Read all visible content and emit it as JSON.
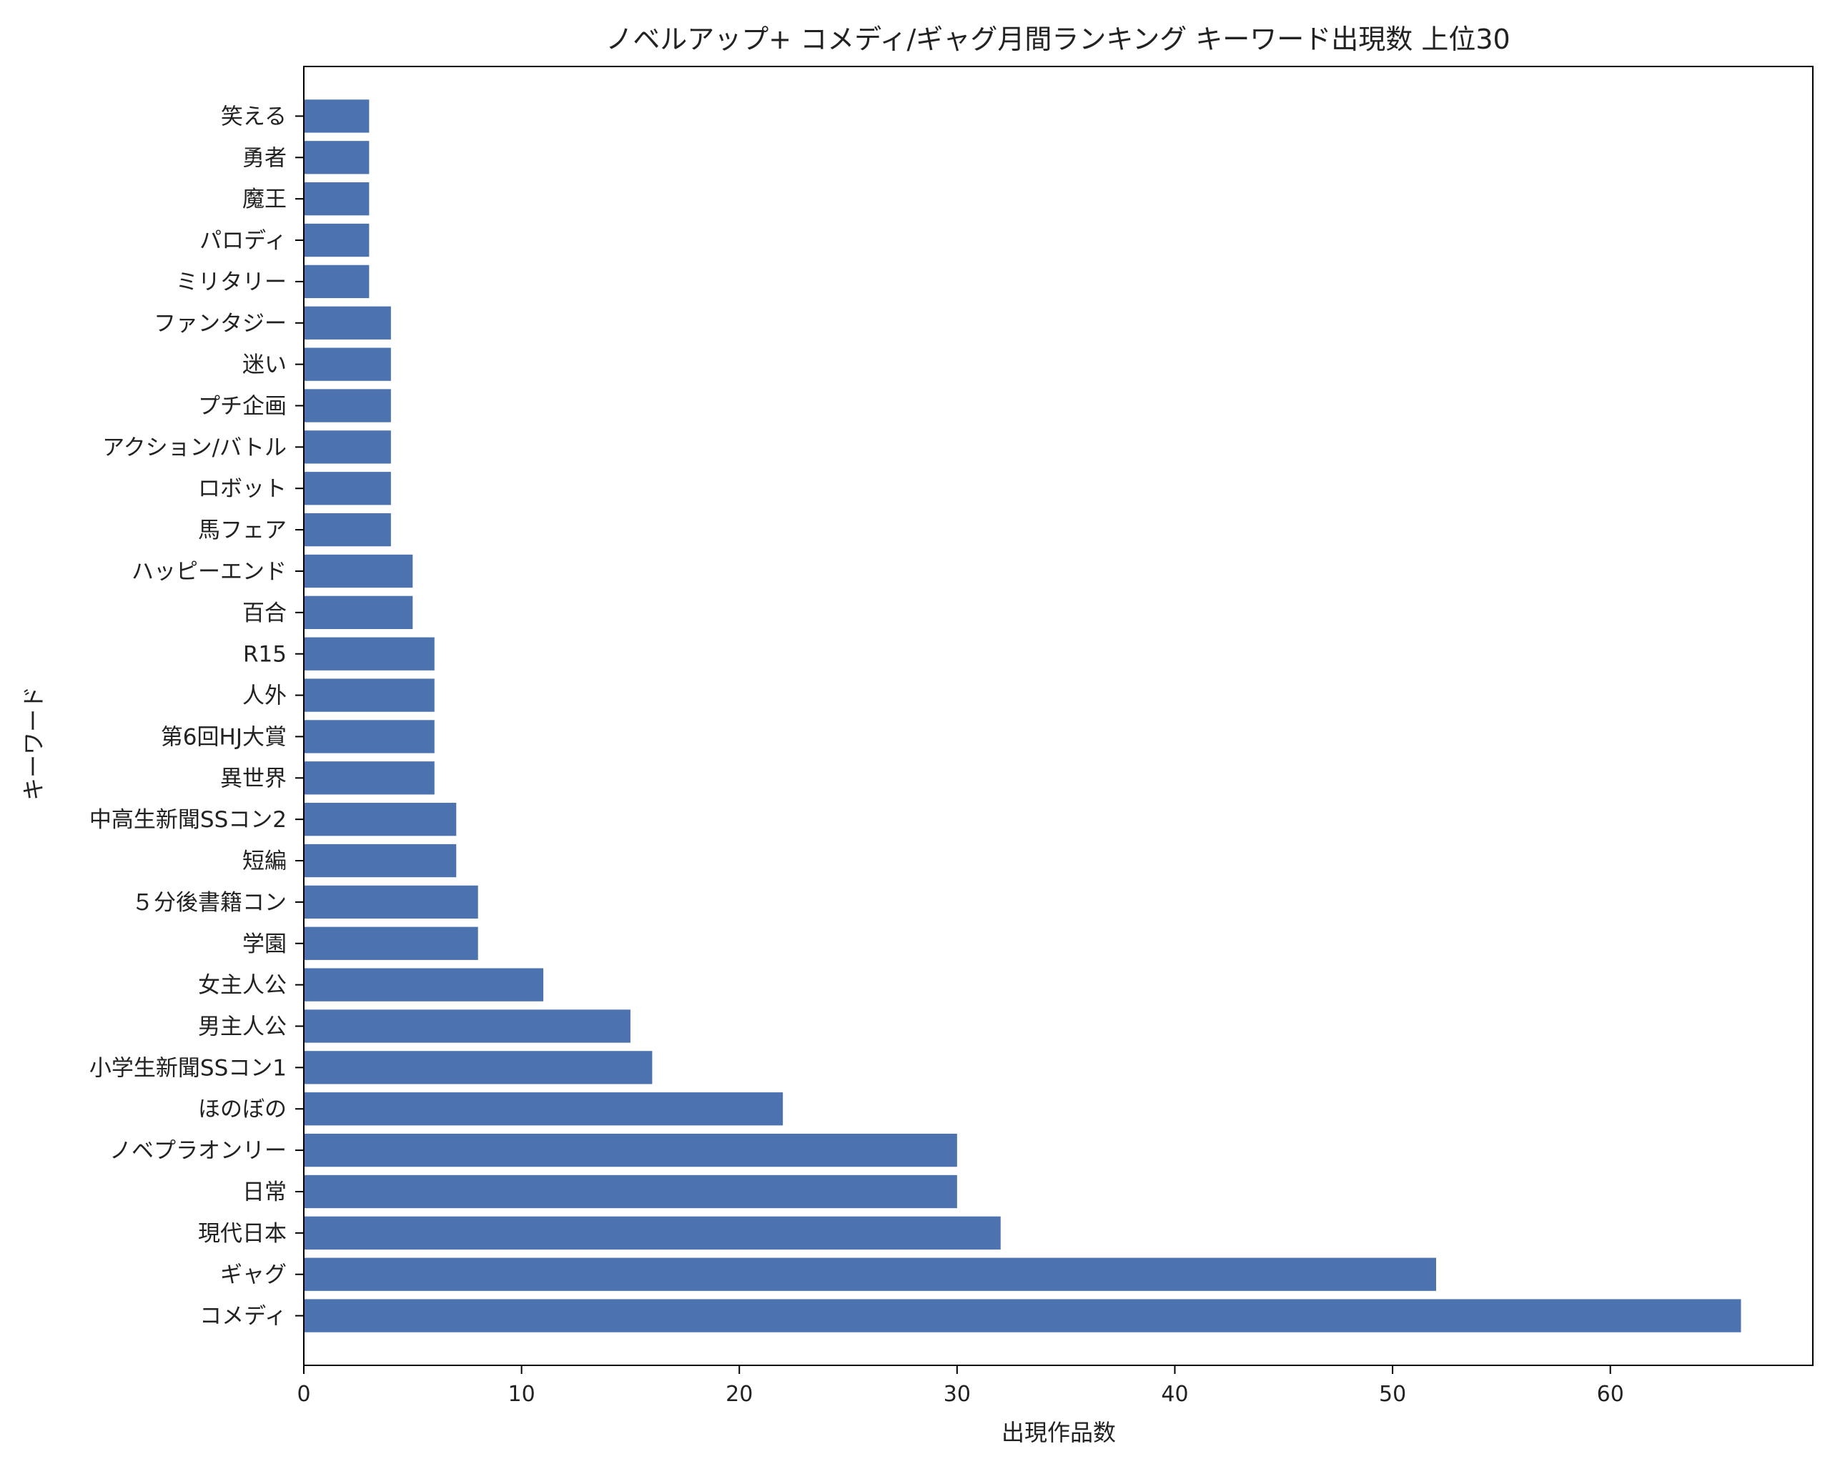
{
  "chart_data": {
    "type": "bar",
    "orientation": "horizontal",
    "title": "ノベルアップ+ コメディ/ギャグ月間ランキング キーワード出現数 上位30",
    "xlabel": "出現作品数",
    "ylabel": "キーワード",
    "xlim": [
      0,
      69.3
    ],
    "x_ticks": [
      0,
      10,
      20,
      30,
      40,
      50,
      60
    ],
    "grid": false,
    "bar_color": "#4c72b0",
    "categories": [
      "コメディ",
      "ギャグ",
      "現代日本",
      "日常",
      "ノベプラオンリー",
      "ほのぼの",
      "小学生新聞SSコン1",
      "男主人公",
      "女主人公",
      "学園",
      "５分後書籍コン",
      "短編",
      "中高生新聞SSコン2",
      "異世界",
      "第6回HJ大賞",
      "人外",
      "R15",
      "百合",
      "ハッピーエンド",
      "馬フェア",
      "ロボット",
      "アクション/バトル",
      "プチ企画",
      "迷い",
      "ファンタジー",
      "ミリタリー",
      "パロディ",
      "魔王",
      "勇者",
      "笑える"
    ],
    "values": [
      66,
      52,
      32,
      30,
      30,
      22,
      16,
      15,
      11,
      8,
      8,
      7,
      7,
      6,
      6,
      6,
      6,
      5,
      5,
      4,
      4,
      4,
      4,
      4,
      4,
      3,
      3,
      3,
      3,
      3
    ]
  }
}
